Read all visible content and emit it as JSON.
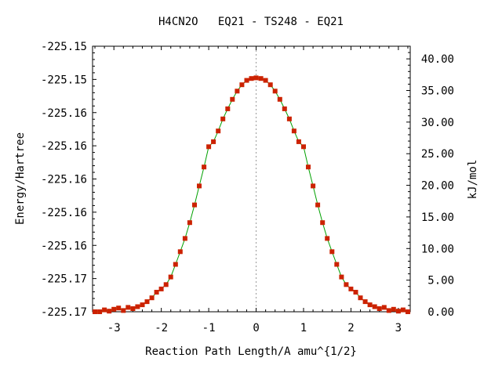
{
  "chart_data": {
    "type": "line",
    "title": "H4CN2O   EQ21 - TS248 - EQ21",
    "xlabel": "Reaction Path Length/A amu^{1/2}",
    "ylabel": "Energy/Hartree",
    "y2label": "kJ/mol",
    "xlim": [
      -3.45,
      3.25
    ],
    "x_ticks": [
      -3,
      -2,
      -1,
      0,
      1,
      2,
      3
    ],
    "x_tick_labels": [
      "-3",
      "-2",
      "-1",
      "0",
      "1",
      "2",
      "3"
    ],
    "y_tick_labels": [
      "-225.15",
      "-225.15",
      "-225.16",
      "-225.16",
      "-225.16",
      "-225.16",
      "-225.16",
      "-225.17",
      "-225.17"
    ],
    "y2lim": [
      0,
      42
    ],
    "y2_ticks": [
      0,
      5,
      10,
      15,
      20,
      25,
      30,
      35,
      40
    ],
    "y2_tick_labels": [
      "0.00",
      "5.00",
      "10.00",
      "15.00",
      "20.00",
      "25.00",
      "30.00",
      "35.00",
      "40.00"
    ],
    "ts_marker_x": 0,
    "series": [
      {
        "color": "#cc2200",
        "line_color": "#00a000",
        "x": [
          -3.4,
          -3.3,
          -3.2,
          -3.1,
          -3.0,
          -2.9,
          -2.8,
          -2.7,
          -2.6,
          -2.5,
          -2.4,
          -2.3,
          -2.2,
          -2.1,
          -2.0,
          -1.9,
          -1.8,
          -1.7,
          -1.6,
          -1.5,
          -1.4,
          -1.3,
          -1.2,
          -1.1,
          -1.0,
          -0.9,
          -0.8,
          -0.7,
          -0.6,
          -0.5,
          -0.4,
          -0.3,
          -0.2,
          -0.1,
          0.0,
          0.1,
          0.2,
          0.3,
          0.4,
          0.5,
          0.6,
          0.7,
          0.8,
          0.9,
          1.0,
          1.1,
          1.2,
          1.3,
          1.4,
          1.5,
          1.6,
          1.7,
          1.8,
          1.9,
          2.0,
          2.1,
          2.2,
          2.3,
          2.4,
          2.5,
          2.6,
          2.7,
          2.8,
          2.9,
          3.0,
          3.1,
          3.2
        ],
        "y": [
          0.0,
          0.0,
          0.3,
          0.1,
          0.4,
          0.6,
          0.2,
          0.7,
          0.5,
          0.8,
          1.1,
          1.6,
          2.2,
          3.1,
          3.6,
          4.3,
          5.5,
          7.5,
          9.5,
          11.6,
          14.1,
          16.9,
          19.9,
          22.9,
          26.1,
          26.9,
          28.6,
          30.5,
          32.1,
          33.6,
          34.9,
          35.9,
          36.6,
          36.9,
          37.0,
          36.9,
          36.6,
          35.9,
          34.9,
          33.6,
          32.1,
          30.5,
          28.6,
          26.9,
          26.1,
          22.9,
          19.9,
          16.9,
          14.1,
          11.6,
          9.5,
          7.5,
          5.5,
          4.3,
          3.6,
          3.1,
          2.2,
          1.6,
          1.1,
          0.8,
          0.5,
          0.7,
          0.2,
          0.4,
          0.1,
          0.3,
          0.0
        ]
      }
    ]
  }
}
